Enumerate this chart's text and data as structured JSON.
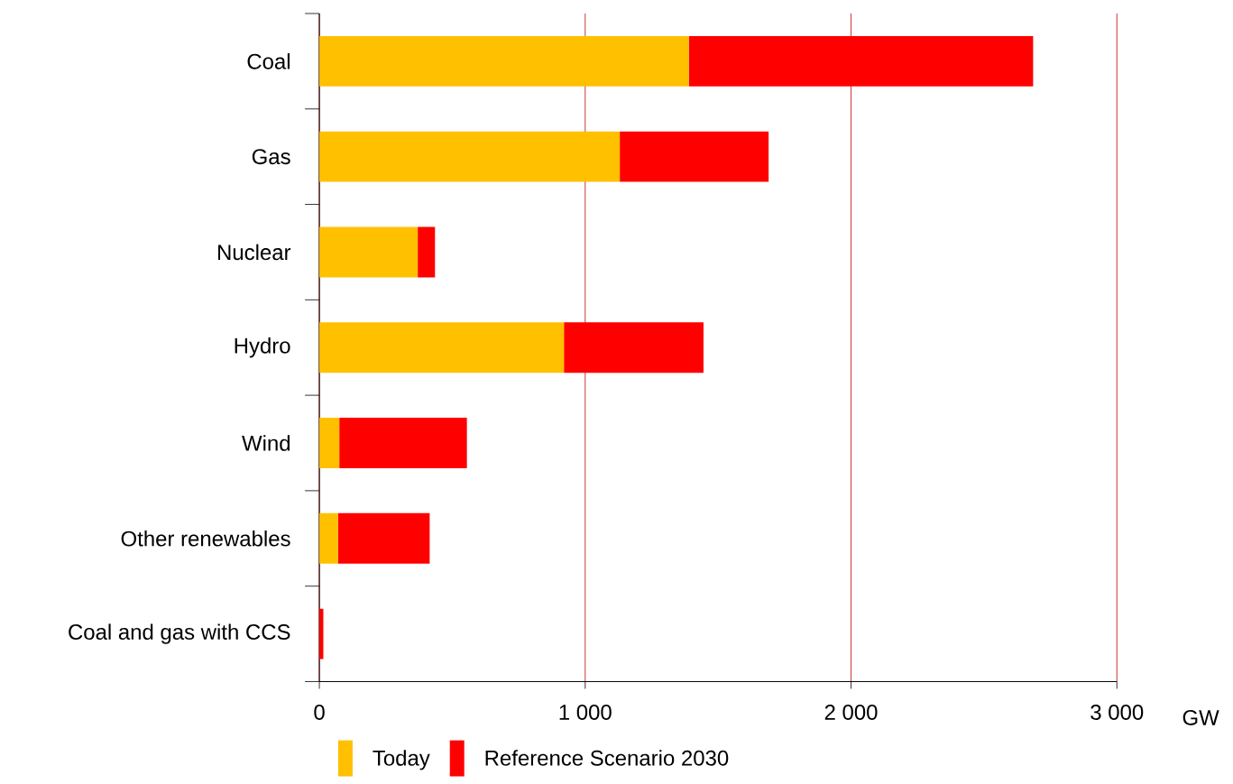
{
  "chart_data": {
    "type": "bar",
    "orientation": "horizontal",
    "stacked": true,
    "categories": [
      "Coal",
      "Gas",
      "Nuclear",
      "Hydro",
      "Wind",
      "Other renewables",
      "Coal and gas with CCS"
    ],
    "series": [
      {
        "name": "Today",
        "color": "#ffc000",
        "values": [
          1390,
          1130,
          370,
          920,
          75,
          70,
          0
        ]
      },
      {
        "name": "Reference Scenario 2030",
        "color": "#ff0000",
        "values": [
          1295,
          560,
          65,
          525,
          480,
          345,
          15
        ]
      }
    ],
    "xlabel": "GW",
    "xlim": [
      0,
      3000
    ],
    "xticks": [
      0,
      {
        "value": 1000,
        "label": "1 000"
      },
      {
        "value": 2000,
        "label": "2 000"
      },
      {
        "value": 3000,
        "label": "3 000"
      }
    ],
    "grid": "x",
    "legend": "bottom"
  }
}
